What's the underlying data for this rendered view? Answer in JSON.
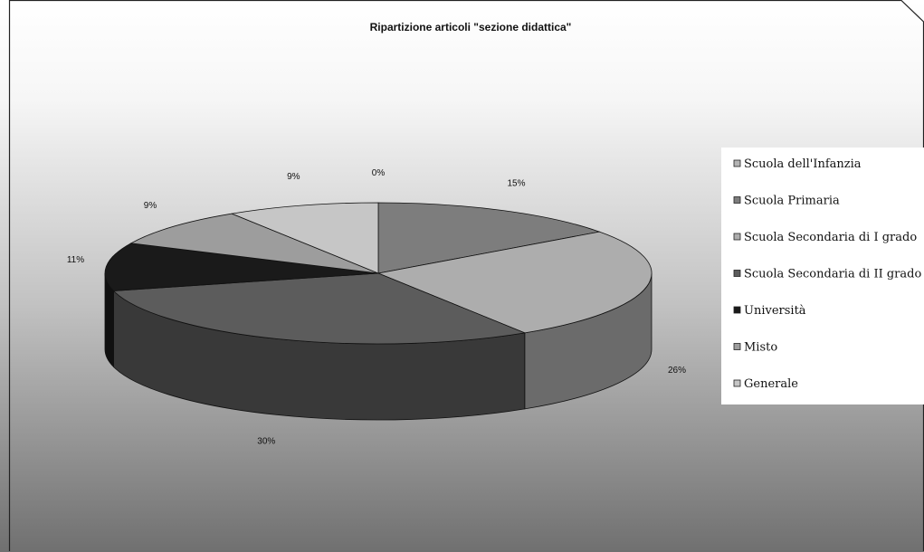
{
  "chart_data": {
    "type": "pie",
    "title": "Ripartizione articoli \"sezione didattica\"",
    "categories": [
      "Scuola dell'Infanzia",
      "Scuola Primaria",
      "Scuola Secondaria di I grado",
      "Scuola Secondaria di II grado",
      "Università",
      "Misto",
      "Generale"
    ],
    "values": [
      0,
      15,
      26,
      30,
      11,
      9,
      9
    ],
    "labels": [
      "0%",
      "15%",
      "26%",
      "30%",
      "11%",
      "9%",
      "9%"
    ],
    "colors": [
      "#b4b4b4",
      "#7d7d7d",
      "#adadad",
      "#5c5c5c",
      "#1a1a1a",
      "#9d9d9d",
      "#c6c6c6"
    ],
    "legend_position": "right",
    "three_d": true
  }
}
